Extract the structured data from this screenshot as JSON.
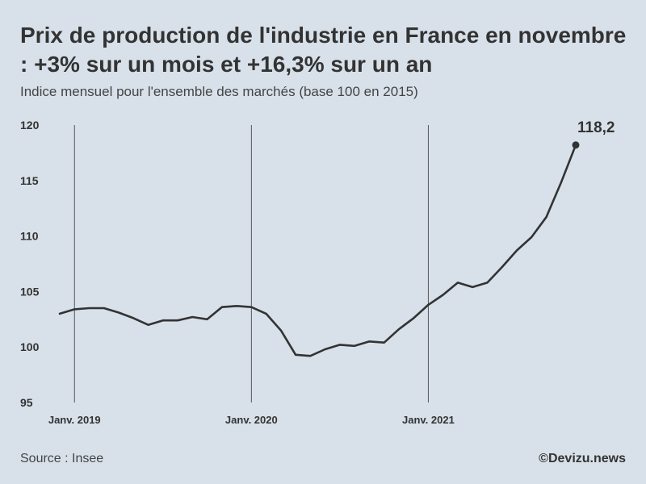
{
  "title": "Prix de production de l'industrie en France en novembre : +3% sur un mois et +16,3% sur un an",
  "subtitle": "Indice mensuel pour l'ensemble des marchés (base 100 en 2015)",
  "source": "Source : Insee",
  "credit": "©Devizu.news",
  "colors": {
    "background": "#d8e1ea",
    "line": "#333333",
    "year_marker": "#555555"
  },
  "chart_data": {
    "type": "line",
    "title": "",
    "xlabel": "",
    "ylabel": "",
    "ylim": [
      95,
      120
    ],
    "yticks": [
      95,
      100,
      105,
      110,
      115,
      120
    ],
    "grid": false,
    "year_markers": [
      {
        "label": "Janv. 2019",
        "x": "2019-01"
      },
      {
        "label": "Janv. 2020",
        "x": "2020-01"
      },
      {
        "label": "Janv. 2021",
        "x": "2021-01"
      }
    ],
    "end_label": "118,2",
    "x": [
      "2018-12",
      "2019-01",
      "2019-02",
      "2019-03",
      "2019-04",
      "2019-05",
      "2019-06",
      "2019-07",
      "2019-08",
      "2019-09",
      "2019-10",
      "2019-11",
      "2019-12",
      "2020-01",
      "2020-02",
      "2020-03",
      "2020-04",
      "2020-05",
      "2020-06",
      "2020-07",
      "2020-08",
      "2020-09",
      "2020-10",
      "2020-11",
      "2020-12",
      "2021-01",
      "2021-02",
      "2021-03",
      "2021-04",
      "2021-05",
      "2021-06",
      "2021-07",
      "2021-08",
      "2021-09",
      "2021-10",
      "2021-11"
    ],
    "series": [
      {
        "values": [
          103.0,
          103.4,
          103.5,
          103.5,
          103.1,
          102.6,
          102.0,
          102.4,
          102.4,
          102.7,
          102.5,
          103.6,
          103.7,
          103.6,
          103.0,
          101.5,
          99.3,
          99.2,
          99.8,
          100.2,
          100.1,
          100.5,
          100.4,
          101.6,
          102.6,
          103.8,
          104.7,
          105.8,
          105.4,
          105.8,
          107.2,
          108.7,
          109.9,
          111.7,
          114.8,
          118.2
        ]
      }
    ]
  }
}
